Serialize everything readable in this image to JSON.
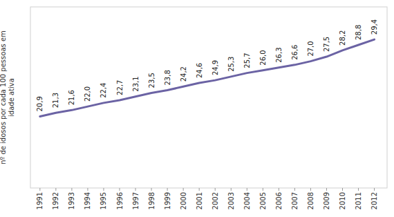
{
  "chart_data": {
    "type": "line",
    "y_label": "nº de idosos por cada 100 pessoas em\nidade ativa",
    "x": [
      1991,
      1992,
      1993,
      1994,
      1995,
      1996,
      1997,
      1998,
      1999,
      2000,
      2001,
      2002,
      2003,
      2004,
      2005,
      2006,
      2007,
      2008,
      2009,
      2010,
      2011,
      2012
    ],
    "values": [
      20.9,
      21.3,
      21.6,
      22.0,
      22.4,
      22.7,
      23.1,
      23.5,
      23.8,
      24.2,
      24.6,
      24.9,
      25.3,
      25.7,
      26.0,
      26.3,
      26.6,
      27.0,
      27.5,
      28.2,
      28.8,
      29.4
    ],
    "value_labels": [
      "20,9",
      "21,3",
      "21,6",
      "22,0",
      "22,4",
      "22,7",
      "23,1",
      "23,5",
      "23,8",
      "24,2",
      "24,6",
      "24,9",
      "25,3",
      "25,7",
      "26,0",
      "26,3",
      "26,6",
      "27,0",
      "27,5",
      "28,2",
      "28,8",
      "29,4"
    ],
    "data_labels": true,
    "color": "#6b63a4",
    "xlim": [
      1990.4,
      2012.8
    ],
    "ylim": [
      13,
      33
    ],
    "xticks": [
      1991,
      1992,
      1993,
      1994,
      1995,
      1996,
      1997,
      1998,
      1999,
      2000,
      2001,
      2002,
      2003,
      2004,
      2005,
      2006,
      2007,
      2008,
      2009,
      2010,
      2011,
      2012
    ],
    "tick_labels": "x",
    "grid": false
  }
}
